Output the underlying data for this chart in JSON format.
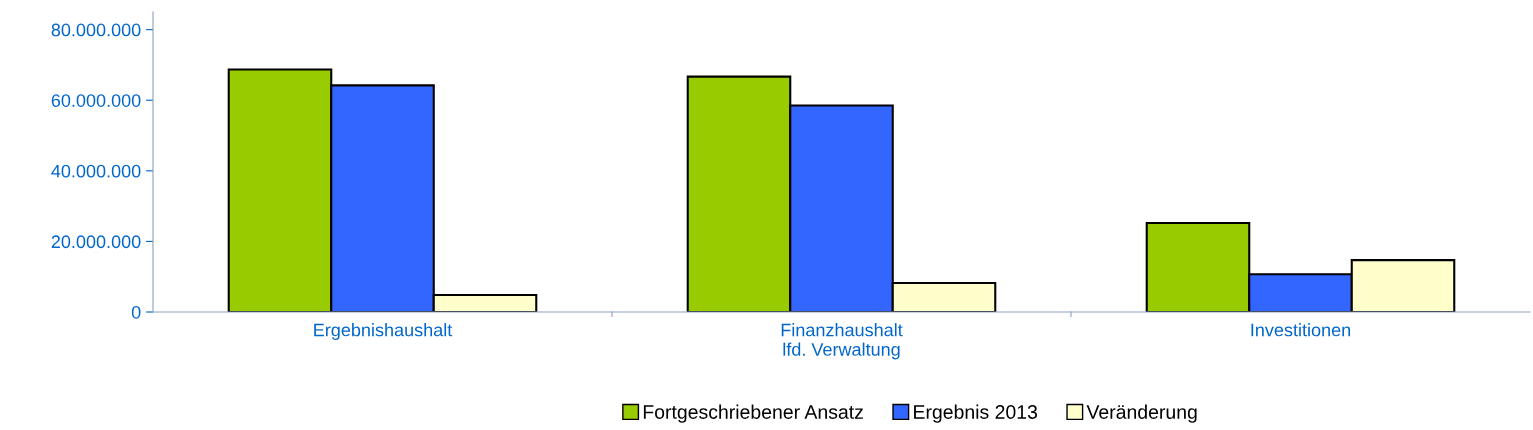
{
  "chart_data": {
    "type": "bar",
    "categories": [
      "Ergebnishaushalt",
      "Finanzhaushalt\nlfd. Verwaltung",
      "Investitionen"
    ],
    "series": [
      {
        "name": "Fortgeschriebener Ansatz",
        "color": "#99cc00",
        "values": [
          68700000,
          66700000,
          25200000
        ]
      },
      {
        "name": "Ergebnis 2013",
        "color": "#3366ff",
        "values": [
          64200000,
          58500000,
          10700000
        ]
      },
      {
        "name": "Veränderung",
        "color": "#ffffcc",
        "values": [
          4800000,
          8200000,
          14700000
        ]
      }
    ],
    "ylim": [
      0,
      85000000
    ],
    "yticks": [
      {
        "value": 0,
        "label": "0"
      },
      {
        "value": 20000000,
        "label": "20.000.000"
      },
      {
        "value": 40000000,
        "label": "40.000.000"
      },
      {
        "value": 60000000,
        "label": "60.000.000"
      },
      {
        "value": 80000000,
        "label": "80.000.000"
      }
    ],
    "grid": false,
    "legend": "bottom"
  }
}
